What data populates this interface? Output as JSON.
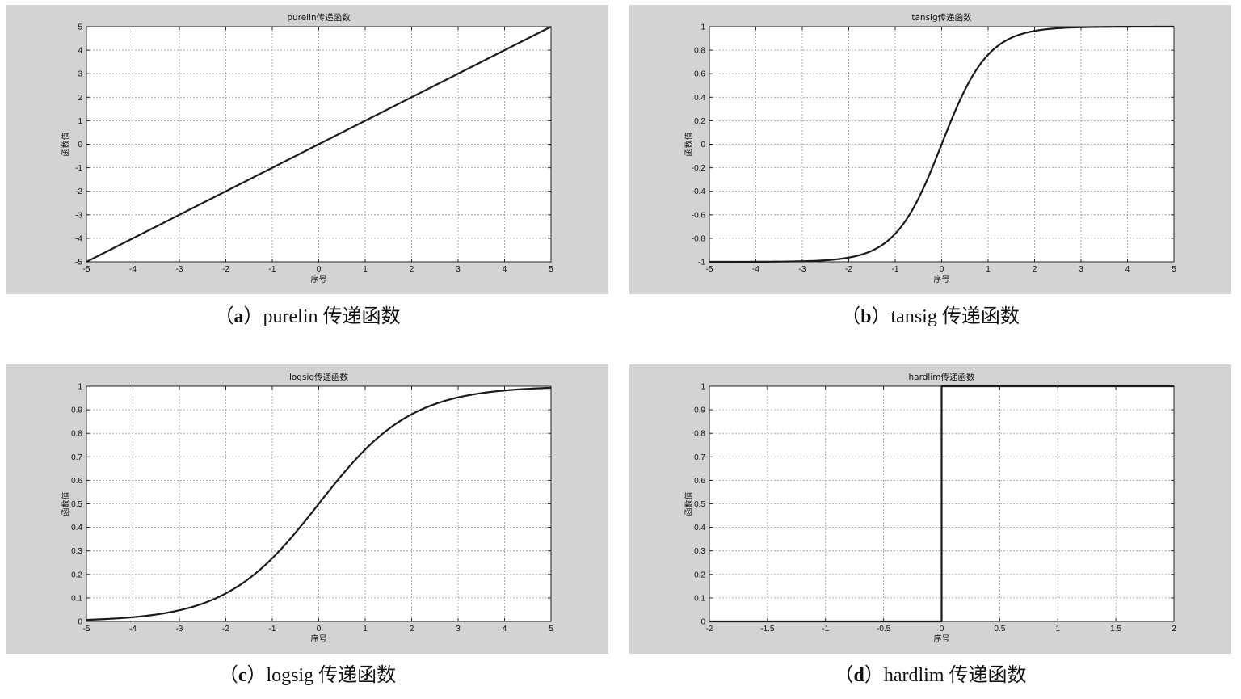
{
  "chart_data": [
    {
      "id": "a",
      "type": "line",
      "title": "purelin传递函数",
      "xlabel": "序号",
      "ylabel": "函数值",
      "xlim": [
        -5,
        5
      ],
      "ylim": [
        -5,
        5
      ],
      "xticks": [
        "-5",
        "-4",
        "-3",
        "-2",
        "-1",
        "0",
        "1",
        "2",
        "3",
        "4",
        "5"
      ],
      "yticks": [
        "-5",
        "-4",
        "-3",
        "-2",
        "-1",
        "0",
        "1",
        "2",
        "3",
        "4",
        "5"
      ],
      "grid": true,
      "function": "purelin",
      "x": [
        -5,
        -4,
        -3,
        -2,
        -1,
        0,
        1,
        2,
        3,
        4,
        5
      ],
      "y": [
        -5,
        -4,
        -3,
        -2,
        -1,
        0,
        1,
        2,
        3,
        4,
        5
      ]
    },
    {
      "id": "b",
      "type": "line",
      "title": "tansig传递函数",
      "xlabel": "序号",
      "ylabel": "函数值",
      "xlim": [
        -5,
        5
      ],
      "ylim": [
        -1,
        1
      ],
      "xticks": [
        "-5",
        "-4",
        "-3",
        "-2",
        "-1",
        "0",
        "1",
        "2",
        "3",
        "4",
        "5"
      ],
      "yticks": [
        "-1",
        "-0.8",
        "-0.6",
        "-0.4",
        "-0.2",
        "0",
        "0.2",
        "0.4",
        "0.6",
        "0.8",
        "1"
      ],
      "grid": true,
      "function": "tansig",
      "x": [
        -5,
        -4,
        -3,
        -2,
        -1.5,
        -1,
        -0.5,
        0,
        0.5,
        1,
        1.5,
        2,
        3,
        4,
        5
      ],
      "y": [
        -1,
        -0.999,
        -0.995,
        -0.964,
        -0.905,
        -0.762,
        -0.462,
        0,
        0.462,
        0.762,
        0.905,
        0.964,
        0.995,
        0.999,
        1
      ]
    },
    {
      "id": "c",
      "type": "line",
      "title": "logsig传递函数",
      "xlabel": "序号",
      "ylabel": "函数值",
      "xlim": [
        -5,
        5
      ],
      "ylim": [
        0,
        1
      ],
      "xticks": [
        "-5",
        "-4",
        "-3",
        "-2",
        "-1",
        "0",
        "1",
        "2",
        "3",
        "4",
        "5"
      ],
      "yticks": [
        "0",
        "0.1",
        "0.2",
        "0.3",
        "0.4",
        "0.5",
        "0.6",
        "0.7",
        "0.8",
        "0.9",
        "1"
      ],
      "grid": true,
      "function": "logsig",
      "x": [
        -5,
        -4,
        -3,
        -2,
        -1,
        0,
        1,
        2,
        3,
        4,
        5
      ],
      "y": [
        0.007,
        0.018,
        0.047,
        0.119,
        0.269,
        0.5,
        0.731,
        0.881,
        0.953,
        0.982,
        0.993
      ]
    },
    {
      "id": "d",
      "type": "line",
      "title": "hardlim传递函数",
      "xlabel": "序号",
      "ylabel": "函数值",
      "xlim": [
        -2,
        2
      ],
      "ylim": [
        0,
        1
      ],
      "xticks": [
        "-2",
        "-1.5",
        "-1",
        "-0.5",
        "0",
        "0.5",
        "1",
        "1.5",
        "2"
      ],
      "yticks": [
        "0",
        "0.1",
        "0.2",
        "0.3",
        "0.4",
        "0.5",
        "0.6",
        "0.7",
        "0.8",
        "0.9",
        "1"
      ],
      "grid": true,
      "function": "hardlim",
      "x": [
        -2,
        0,
        0,
        2
      ],
      "y": [
        0,
        0,
        1,
        1
      ]
    }
  ],
  "captions": {
    "a": {
      "letter": "a",
      "text": "purelin 传递函数"
    },
    "b": {
      "letter": "b",
      "text": "tansig 传递函数"
    },
    "c": {
      "letter": "c",
      "text": "logsig 传递函数"
    },
    "d": {
      "letter": "d",
      "text": "hardlim 传递函数"
    }
  },
  "colors": {
    "panel_bg": "#d3d3d3",
    "plot_bg": "#ffffff",
    "grid": "#9a9a9a",
    "curve": "#1a1a1a",
    "text": "#111111"
  }
}
